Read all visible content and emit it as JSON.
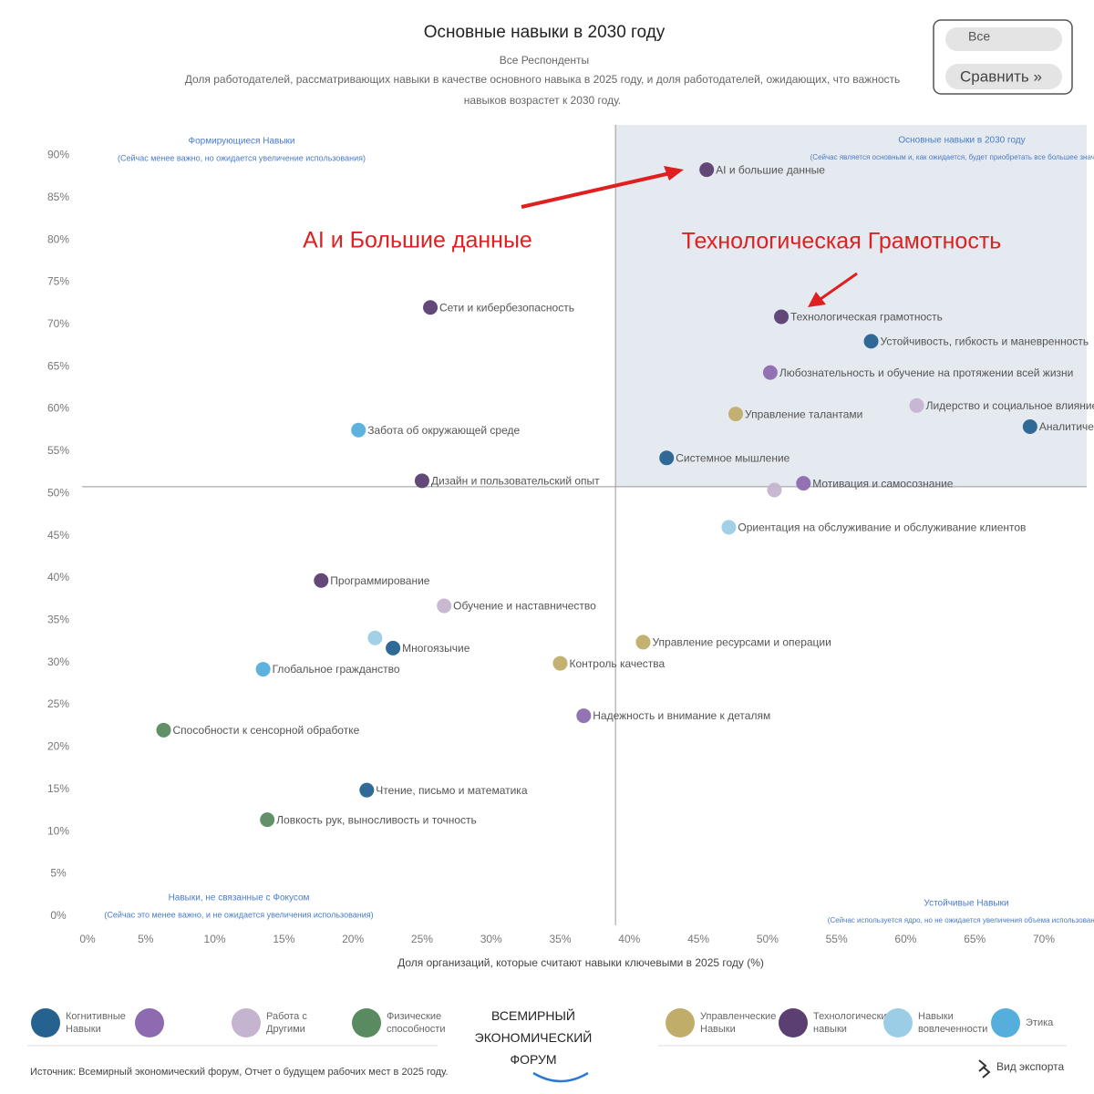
{
  "chart_data": {
    "type": "scatter",
    "title": "Основные навыки в 2030 году",
    "subtitle": "Все Респонденты",
    "description": "Доля работодателей, рассматривающих навыки в качестве основного навыка в 2025 году, и доля работодателей, ожидающих, что важность навыков возрастет к 2030 году.",
    "x_label": "Доля организаций, которые считают навыки ключевыми в 2025 году (%)",
    "xlim": [
      0,
      73.1
    ],
    "ylim": [
      -1.1,
      93.6
    ],
    "xticks": [
      {
        "value": 0,
        "label": "0%"
      },
      {
        "value": 5,
        "label": "5%"
      },
      {
        "value": 10,
        "label": "10%"
      },
      {
        "value": 15,
        "label": "15%"
      },
      {
        "value": 20,
        "label": "20%"
      },
      {
        "value": 25,
        "label": "25%"
      },
      {
        "value": 30,
        "label": "30%"
      },
      {
        "value": 35,
        "label": "35%"
      },
      {
        "value": 40,
        "label": "40%"
      },
      {
        "value": 45,
        "label": "45%"
      },
      {
        "value": 50,
        "label": "50%"
      },
      {
        "value": 55,
        "label": "55%"
      },
      {
        "value": 60,
        "label": "60%"
      },
      {
        "value": 65,
        "label": "65%"
      },
      {
        "value": 70,
        "label": "70%"
      }
    ],
    "yticks": [
      {
        "value": 0,
        "label": "0%"
      },
      {
        "value": 5,
        "label": "5%"
      },
      {
        "value": 10,
        "label": "10%"
      },
      {
        "value": 15,
        "label": "15%"
      },
      {
        "value": 20,
        "label": "20%"
      },
      {
        "value": 25,
        "label": "25%"
      },
      {
        "value": 30,
        "label": "30%"
      },
      {
        "value": 35,
        "label": "35%"
      },
      {
        "value": 40,
        "label": "40%"
      },
      {
        "value": 45,
        "label": "45%"
      },
      {
        "value": 50,
        "label": "50%"
      },
      {
        "value": 55,
        "label": "55%"
      },
      {
        "value": 60,
        "label": "60%"
      },
      {
        "value": 65,
        "label": "65%"
      },
      {
        "value": 70,
        "label": "70%"
      },
      {
        "value": 75,
        "label": "75%"
      },
      {
        "value": 80,
        "label": "80%"
      },
      {
        "value": 85,
        "label": "85%"
      },
      {
        "value": 90,
        "label": "90%"
      }
    ],
    "reference_lines": {
      "x": 39,
      "y": 50.8
    },
    "quadrants": [
      {
        "title": "Формирующиеся Навыки",
        "note": "(Сейчас менее важно, но ожидается увеличение использования)"
      },
      {
        "title": "Основные навыки в 2030 году",
        "note": "(Сейчас является основным и, как ожидается, будет приобретать все большее значение)"
      },
      {
        "title": "Навыки, не связанные с Фокусом",
        "note": "(Сейчас это менее важно, и не ожидается увеличения использования)"
      },
      {
        "title": "Устойчивые Навыки",
        "note": "(Сейчас используется ядро, но не ожидается увеличения объема использования)"
      }
    ],
    "annotations": [
      "AI и Большие данные",
      "Технологическая Грамотность"
    ],
    "series": [
      {
        "name": "Когнитивные Навыки",
        "color": "#26628f",
        "x": [
          57.5,
          42.7,
          22.9,
          21.0,
          69.0
        ],
        "values": [
          68.0,
          54.2,
          31.7,
          14.9,
          57.9
        ],
        "labels": [
          "Устойчивость, гибкость и маневренность",
          "Системное мышление",
          "Многоязычие",
          "Чтение, письмо и математика",
          "Аналитическое мышление"
        ]
      },
      {
        "color": "#8e6bb0",
        "x": [
          50.2,
          52.6,
          36.7
        ],
        "values": [
          64.3,
          51.2,
          23.7
        ],
        "labels": [
          "Любознательность и обучение на протяжении всей жизни",
          "Мотивация и самосознание",
          "Надежность и внимание к деталям"
        ]
      },
      {
        "name": "Работа с Другими",
        "color": "#c5b4d0",
        "x": [
          60.8,
          50.5,
          26.6
        ],
        "values": [
          60.4,
          50.4,
          36.7
        ],
        "labels": [
          "Лидерство и социальное влияние",
          null,
          "Обучение и наставничество"
        ]
      },
      {
        "name": "Физические способности",
        "color": "#5a8a5f",
        "x": [
          6.3,
          13.8
        ],
        "values": [
          22.0,
          11.4
        ],
        "labels": [
          "Способности к сенсорной обработке",
          "Ловкость рук, выносливость и точность"
        ]
      },
      {
        "name": "Управленческие Навыки",
        "color": "#c0ad6a",
        "x": [
          47.7,
          41.0,
          35.0
        ],
        "values": [
          59.4,
          32.4,
          29.9
        ],
        "labels": [
          "Управление талантами",
          "Управление ресурсами и операции",
          "Контроль качества"
        ]
      },
      {
        "name": "Технологические навыки",
        "color": "#5b3f72",
        "x": [
          45.6,
          25.6,
          51.0,
          25.0,
          17.7
        ],
        "values": [
          88.3,
          72.0,
          70.9,
          51.5,
          39.7
        ],
        "labels": [
          "AI и большие данные",
          "Сети и кибербезопасность",
          "Технологическая грамотность",
          "Дизайн и пользовательский опыт",
          "Программирование"
        ]
      },
      {
        "name": "Навыки вовлеченности",
        "color": "#9ccde6",
        "x": [
          47.2,
          21.6
        ],
        "values": [
          46.0,
          32.9
        ],
        "labels": [
          "Ориентация на обслуживание и обслуживание клиентов",
          null
        ]
      },
      {
        "name": "Этика",
        "color": "#55aedc",
        "x": [
          20.4,
          13.5
        ],
        "values": [
          57.5,
          29.2
        ],
        "labels": [
          "Забота об окружающей среде",
          "Глобальное гражданство"
        ]
      }
    ]
  },
  "controls": {
    "filter": "Все",
    "compare": "Сравнить »",
    "export": "Вид экспорта"
  },
  "logo": "ВСЕМИРНЫЙ ЭКОНОМИЧЕСКИЙ ФОРУМ",
  "source": "Источник: Всемирный экономический форум, Отчет о будущем рабочих мест в 2025 году."
}
